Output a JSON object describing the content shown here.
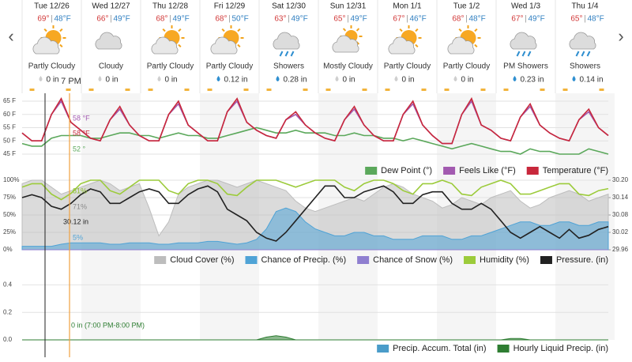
{
  "forecast": [
    {
      "day": "Tue 12/26",
      "high": "69°",
      "low": "48°F",
      "condition": "Partly Cloudy",
      "precip": "0 in"
    },
    {
      "day": "Wed 12/27",
      "high": "66°",
      "low": "49°F",
      "condition": "Cloudy",
      "precip": "0 in"
    },
    {
      "day": "Thu 12/28",
      "high": "68°",
      "low": "49°F",
      "condition": "Partly Cloudy",
      "precip": "0 in"
    },
    {
      "day": "Fri 12/29",
      "high": "68°",
      "low": "50°F",
      "condition": "Partly Cloudy",
      "precip": "0.12 in"
    },
    {
      "day": "Sat 12/30",
      "high": "63°",
      "low": "49°F",
      "condition": "Showers",
      "precip": "0.28 in"
    },
    {
      "day": "Sun 12/31",
      "high": "65°",
      "low": "49°F",
      "condition": "Mostly Cloudy",
      "precip": "0 in"
    },
    {
      "day": "Mon 1/1",
      "high": "67°",
      "low": "46°F",
      "condition": "Partly Cloudy",
      "precip": "0 in"
    },
    {
      "day": "Tue 1/2",
      "high": "68°",
      "low": "48°F",
      "condition": "Partly Cloudy",
      "precip": "0 in"
    },
    {
      "day": "Wed 1/3",
      "high": "67°",
      "low": "49°F",
      "condition": "PM Showers",
      "precip": "0.23 in"
    },
    {
      "day": "Thu 1/4",
      "high": "65°",
      "low": "48°F",
      "condition": "Showers",
      "precip": "0.14 in"
    }
  ],
  "now_label": "7 PM",
  "chart_data": [
    {
      "type": "line",
      "grid": true,
      "ylim": [
        42,
        68
      ],
      "yticks": [
        {
          "value": 45,
          "label": "45 F"
        },
        {
          "value": 50,
          "label": "50 F"
        },
        {
          "value": 55,
          "label": "55 F"
        },
        {
          "value": 60,
          "label": "60 F"
        },
        {
          "value": 65,
          "label": "65 F"
        }
      ],
      "annotations": [
        "58 °F",
        "58 °F",
        "52 °"
      ],
      "series": [
        {
          "name": "Dew Point (°)",
          "color": "#5ba85b",
          "values": [
            49,
            48,
            48,
            51,
            52,
            52,
            52,
            51,
            51,
            52,
            53,
            53,
            52,
            52,
            51,
            52,
            53,
            52,
            52,
            51,
            51,
            52,
            53,
            54,
            55,
            54,
            53,
            53,
            54,
            53,
            53,
            53,
            52,
            52,
            53,
            52,
            52,
            51,
            51,
            50,
            51,
            50,
            49,
            48,
            47,
            48,
            49,
            48,
            47,
            46,
            46,
            45,
            47,
            46,
            46,
            45,
            45,
            45,
            47,
            46,
            45
          ]
        },
        {
          "name": "Feels Like (°F)",
          "color": "#a25ab0",
          "values": [
            53,
            50,
            50,
            60,
            65,
            57,
            54,
            51,
            50,
            58,
            62,
            56,
            52,
            50,
            50,
            60,
            64,
            56,
            53,
            50,
            50,
            61,
            65,
            57,
            54,
            52,
            51,
            58,
            60,
            56,
            53,
            51,
            50,
            58,
            62,
            56,
            52,
            50,
            50,
            60,
            64,
            56,
            52,
            49,
            49,
            60,
            65,
            56,
            54,
            51,
            50,
            59,
            63,
            56,
            53,
            51,
            50,
            58,
            61,
            55,
            52
          ]
        },
        {
          "name": "Temperature (°F)",
          "color": "#c8283c",
          "values": [
            53,
            50,
            50,
            60,
            66,
            57,
            54,
            51,
            50,
            58,
            63,
            56,
            52,
            50,
            50,
            60,
            65,
            56,
            53,
            50,
            50,
            61,
            66,
            57,
            54,
            52,
            51,
            58,
            61,
            56,
            53,
            51,
            50,
            58,
            63,
            56,
            52,
            50,
            50,
            60,
            65,
            56,
            52,
            49,
            49,
            60,
            66,
            56,
            54,
            51,
            50,
            59,
            64,
            56,
            53,
            51,
            50,
            58,
            62,
            55,
            52
          ]
        }
      ]
    },
    {
      "type": "line",
      "grid": true,
      "ylim": [
        0,
        100
      ],
      "yticks": [
        {
          "value": 0,
          "label": "0%"
        },
        {
          "value": 25,
          "label": "25%"
        },
        {
          "value": 50,
          "label": "50%"
        },
        {
          "value": 75,
          "label": "75%"
        },
        {
          "value": 100,
          "label": "100%"
        }
      ],
      "y2lim": [
        29.96,
        30.2
      ],
      "y2ticks": [
        29.96,
        30.02,
        30.08,
        30.14,
        {
          "value": 30.2,
          "label": "30.20"
        }
      ],
      "annotations": [
        "81%",
        "71%",
        "30.12 in",
        "5%"
      ],
      "series": [
        {
          "name": "Cloud Cover (%)",
          "color": "#bdbdbd",
          "fill": true,
          "values": [
            95,
            100,
            100,
            90,
            80,
            85,
            90,
            95,
            100,
            95,
            85,
            90,
            95,
            60,
            20,
            40,
            80,
            90,
            95,
            100,
            100,
            95,
            90,
            95,
            100,
            95,
            90,
            85,
            70,
            60,
            55,
            60,
            65,
            70,
            75,
            70,
            80,
            90,
            95,
            90,
            80,
            75,
            70,
            60,
            65,
            75,
            70,
            65,
            75,
            80,
            85,
            70,
            60,
            65,
            75,
            80,
            85,
            80,
            70,
            75,
            80
          ]
        },
        {
          "name": "Chance of Precip. (%)",
          "color": "#4fa3d6",
          "fill": true,
          "values": [
            5,
            5,
            5,
            5,
            8,
            10,
            10,
            10,
            10,
            8,
            8,
            10,
            10,
            10,
            8,
            8,
            10,
            10,
            10,
            12,
            12,
            10,
            8,
            10,
            15,
            30,
            55,
            60,
            55,
            40,
            30,
            25,
            20,
            20,
            25,
            25,
            20,
            20,
            15,
            15,
            15,
            20,
            20,
            20,
            15,
            15,
            20,
            20,
            25,
            30,
            35,
            40,
            40,
            35,
            35,
            40,
            40,
            35,
            35,
            40,
            40
          ]
        },
        {
          "name": "Chance of Snow (%)",
          "color": "#8f7fd0",
          "fill": true,
          "values": [
            0,
            0,
            0,
            0,
            0,
            0,
            0,
            0,
            0,
            0,
            0,
            0,
            0,
            0,
            0,
            0,
            0,
            0,
            0,
            0,
            0,
            0,
            0,
            0,
            0,
            0,
            0,
            0,
            0,
            0,
            0,
            0,
            0,
            0,
            0,
            0,
            0,
            0,
            0,
            0,
            0,
            0,
            0,
            0,
            0,
            0,
            0,
            0,
            0,
            0,
            0,
            0,
            0,
            0,
            0,
            0,
            0,
            0,
            0,
            0,
            0
          ]
        },
        {
          "name": "Humidity (%)",
          "color": "#9ccb3b",
          "values": [
            90,
            95,
            95,
            80,
            72,
            81,
            95,
            100,
            100,
            85,
            80,
            90,
            100,
            100,
            100,
            85,
            80,
            95,
            100,
            100,
            95,
            80,
            78,
            90,
            100,
            100,
            100,
            95,
            90,
            95,
            100,
            100,
            100,
            90,
            85,
            95,
            100,
            100,
            95,
            85,
            80,
            95,
            95,
            100,
            95,
            80,
            78,
            90,
            95,
            100,
            95,
            80,
            80,
            85,
            90,
            95,
            95,
            80,
            78,
            85,
            88
          ]
        },
        {
          "name": "Pressure. (in)",
          "color": "#222222",
          "axis": "y2",
          "values": [
            30.14,
            30.15,
            30.14,
            30.11,
            30.1,
            30.12,
            30.15,
            30.17,
            30.16,
            30.12,
            30.12,
            30.14,
            30.16,
            30.17,
            30.16,
            30.12,
            30.12,
            30.15,
            30.17,
            30.18,
            30.16,
            30.1,
            30.08,
            30.06,
            30.02,
            30,
            29.99,
            30.02,
            30.06,
            30.1,
            30.14,
            30.18,
            30.18,
            30.14,
            30.14,
            30.16,
            30.17,
            30.18,
            30.16,
            30.12,
            30.12,
            30.15,
            30.16,
            30.16,
            30.12,
            30.1,
            30.1,
            30.12,
            30.1,
            30.06,
            30.02,
            30,
            30.02,
            30.04,
            30.02,
            30,
            30.03,
            30,
            30.01,
            30.03,
            30.04
          ]
        }
      ]
    },
    {
      "type": "area",
      "grid": true,
      "ylim": [
        0,
        0.5
      ],
      "yticks": [
        {
          "value": 0,
          "label": "0.0"
        },
        0.2,
        0.4
      ],
      "annotations": [
        "0 in (7:00 PM-8:00 PM)"
      ],
      "series": [
        {
          "name": "Precip. Accum. Total (in)",
          "color": "#4a9cc9",
          "fill": true,
          "values": [
            0,
            0,
            0,
            0,
            0,
            0,
            0,
            0,
            0,
            0,
            0,
            0,
            0,
            0,
            0,
            0,
            0,
            0,
            0,
            0,
            0,
            0,
            0,
            0,
            0,
            0,
            0,
            0,
            0,
            0,
            0,
            0,
            0,
            0,
            0,
            0,
            0,
            0,
            0,
            0,
            0,
            0,
            0,
            0,
            0,
            0,
            0,
            0,
            0,
            0,
            0,
            0,
            0,
            0,
            0,
            0,
            0,
            0,
            0,
            0,
            0
          ]
        },
        {
          "name": "Hourly Liquid Precip. (in)",
          "color": "#2e7d32",
          "fill": true,
          "values": [
            0,
            0,
            0,
            0,
            0,
            0,
            0,
            0,
            0,
            0,
            0,
            0,
            0,
            0,
            0,
            0,
            0,
            0,
            0,
            0,
            0,
            0,
            0,
            0,
            0,
            0.02,
            0.03,
            0.02,
            0,
            0,
            0,
            0,
            0,
            0,
            0,
            0,
            0,
            0,
            0,
            0,
            0,
            0,
            0,
            0,
            0,
            0,
            0,
            0,
            0,
            0,
            0.01,
            0.01,
            0,
            0,
            0,
            0,
            0,
            0,
            0,
            0,
            0
          ]
        }
      ]
    }
  ]
}
